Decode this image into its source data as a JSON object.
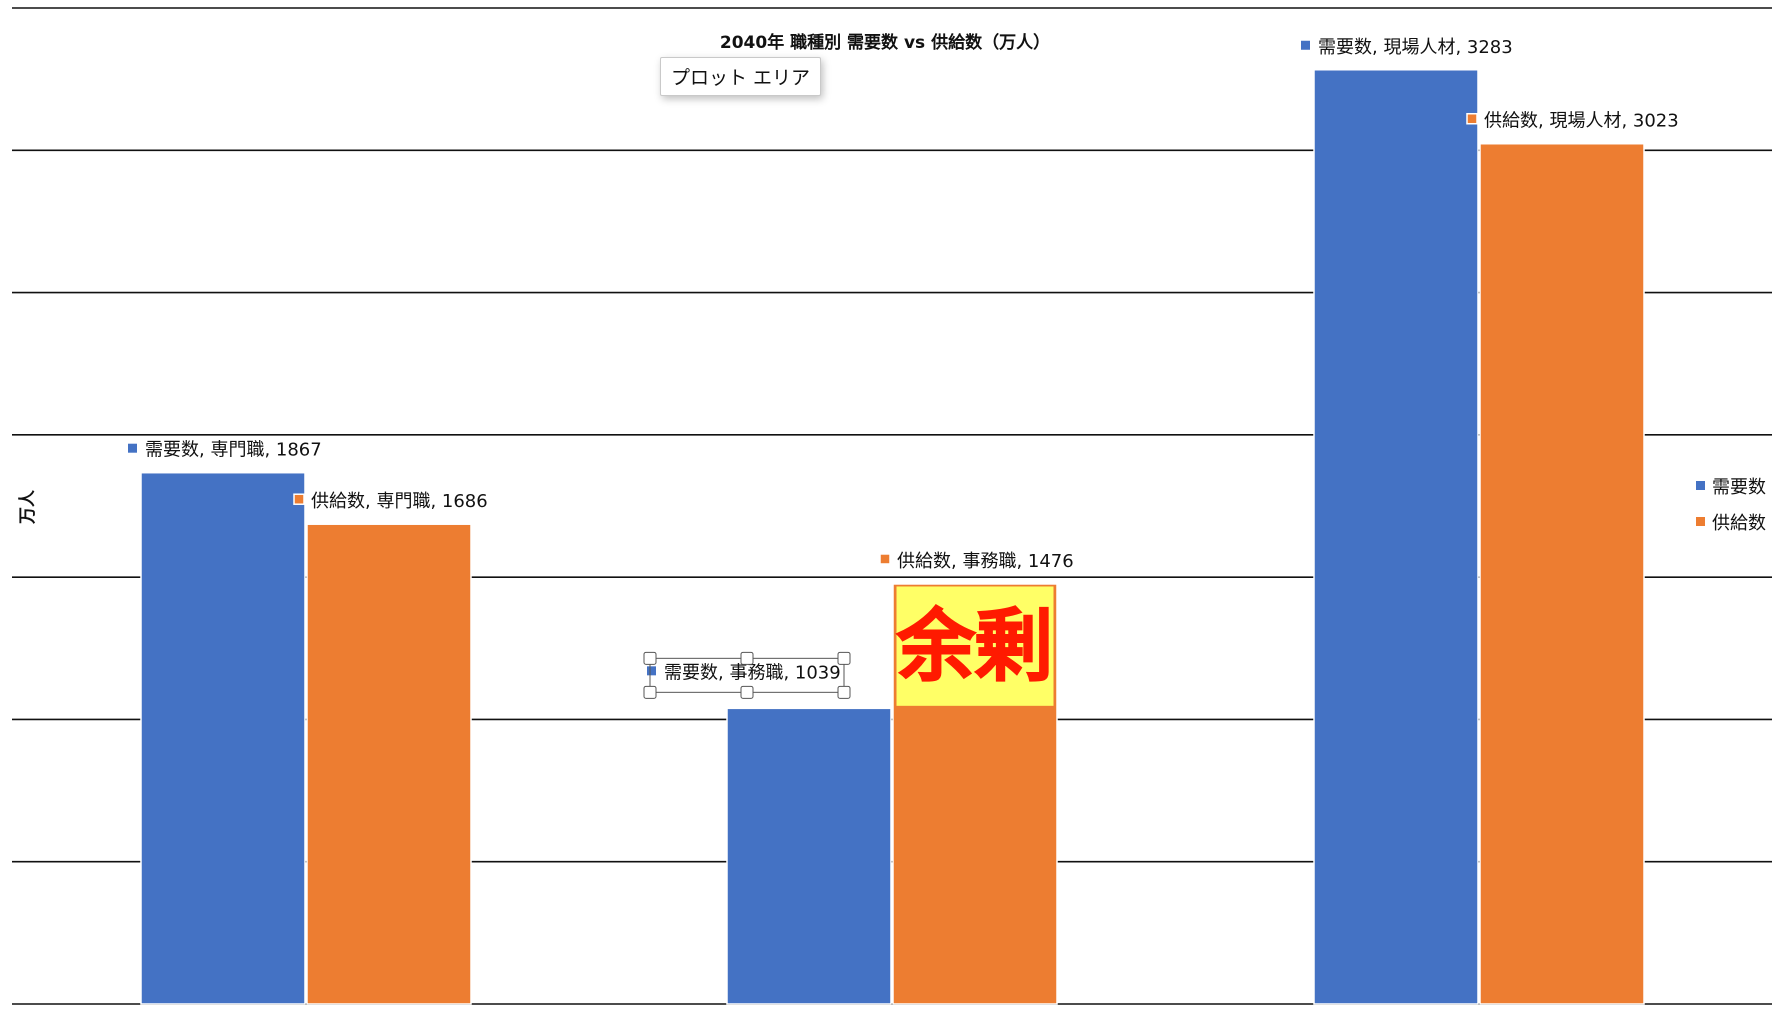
{
  "chart_data": {
    "type": "bar",
    "title": "2040年 職種別 需要数 vs 供給数（万人）",
    "ylabel": "万人",
    "xlabel": "",
    "categories": [
      "専門職",
      "事務職",
      "現場人材"
    ],
    "series": [
      {
        "name": "需要数",
        "color": "#4472C4",
        "values": [
          1867,
          1039,
          3283
        ]
      },
      {
        "name": "供給数",
        "color": "#ED7D31",
        "values": [
          1686,
          1476,
          3023
        ]
      }
    ],
    "ylim": [
      0,
      3500
    ],
    "grid": true,
    "legend_position": "right",
    "annotation": {
      "text": "余剰",
      "color": "#FF1A00",
      "background": "#FFFF66"
    }
  },
  "tooltip": {
    "text": "プロット エリア"
  }
}
